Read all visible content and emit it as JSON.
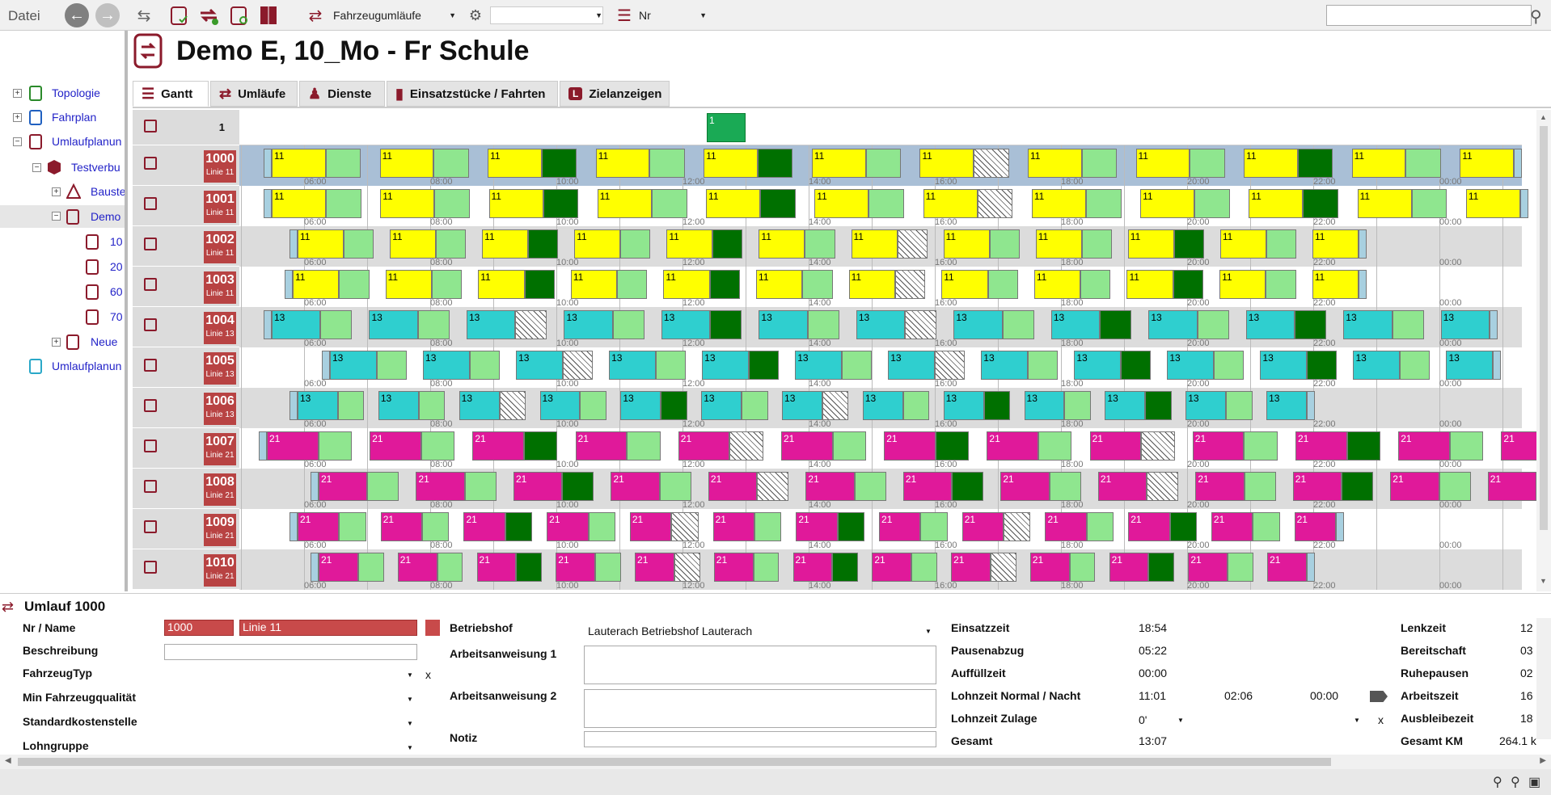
{
  "menu": {
    "file_label": "Datei"
  },
  "toolbar": {
    "dropdown1": "Fahrzeugumläufe",
    "dropdown2": "",
    "dropdown3": "Nr",
    "search_placeholder": ""
  },
  "tree": {
    "items": [
      "Topologie",
      "Fahrplan",
      "Umlaufplanun",
      "Testverbu",
      "Bauste",
      "Demo",
      "10",
      "20",
      "60",
      "70",
      "Neue",
      "Umlaufplanun"
    ]
  },
  "page": {
    "title": "Demo E, 10_Mo - Fr Schule"
  },
  "tabs": [
    "Gantt",
    "Umläufe",
    "Dienste",
    "Einsatzstücke / Fahrten",
    "Zielanzeigen"
  ],
  "gantt": {
    "header_label": "1",
    "header_block": "1",
    "hour_labels": [
      "06:00",
      "08:00",
      "10:00",
      "12:00",
      "14:00",
      "16:00",
      "18:00",
      "20:00",
      "22:00",
      "00:00"
    ],
    "rows": [
      {
        "nr": "1000",
        "line": "Linie 11"
      },
      {
        "nr": "1001",
        "line": "Linie 11"
      },
      {
        "nr": "1002",
        "line": "Linie 11"
      },
      {
        "nr": "1003",
        "line": "Linie 11"
      },
      {
        "nr": "1004",
        "line": "Linie 13"
      },
      {
        "nr": "1005",
        "line": "Linie 13"
      },
      {
        "nr": "1006",
        "line": "Linie 13"
      },
      {
        "nr": "1007",
        "line": "Linie 21"
      },
      {
        "nr": "1008",
        "line": "Linie 21"
      },
      {
        "nr": "1009",
        "line": "Linie 21"
      },
      {
        "nr": "1010",
        "line": "Linie 21"
      }
    ],
    "colors": {
      "line11": "#ffff00",
      "line13": "#2fcfcf",
      "line21": "#e0199a",
      "pause": "#8fe68f",
      "depot": "#007000"
    }
  },
  "details": {
    "title": "Umlauf 1000",
    "nr_name_label": "Nr / Name",
    "nr_value": "1000",
    "name_value": "Linie 11",
    "beschreibung_label": "Beschreibung",
    "fahrzeugtyp_label": "FahrzeugTyp",
    "min_quali_label": "Min Fahrzeugqualität",
    "standardkosten_label": "Standardkostenstelle",
    "lohngruppe_label": "Lohngruppe",
    "betriebshof_label": "Betriebshof",
    "betriebshof_value": "Lauterach Betriebshof Lauterach",
    "aa1_label": "Arbeitsanweisung 1",
    "aa2_label": "Arbeitsanweisung 2",
    "notiz_label": "Notiz",
    "einsatzzeit_label": "Einsatzzeit",
    "einsatzzeit_value": "18:54",
    "pausenabzug_label": "Pausenabzug",
    "pausenabzug_value": "05:22",
    "auffuell_label": "Auffüllzeit",
    "auffuell_value": "00:00",
    "lohnzeit_label": "Lohnzeit Normal / Nacht",
    "lohnzeit_v1": "11:01",
    "lohnzeit_v2": "02:06",
    "lohnzeit_v3": "00:00",
    "zulage_label": "Lohnzeit Zulage",
    "zulage_value": "0'",
    "gesamt_label": "Gesamt",
    "gesamt_value": "13:07",
    "lenkzeit_label": "Lenkzeit",
    "lenkzeit_value": "12",
    "bereitschaft_label": "Bereitschaft",
    "bereitschaft_value": "03",
    "ruhepausen_label": "Ruhepausen",
    "ruhepausen_value": "02",
    "arbeitszeit_label": "Arbeitszeit",
    "arbeitszeit_value": "16",
    "ausbleibezeit_label": "Ausbleibezeit",
    "ausbleibezeit_value": "18",
    "gesamtkm_label": "Gesamt KM",
    "gesamtkm_value": "264.1 k",
    "clear_x": "x"
  }
}
